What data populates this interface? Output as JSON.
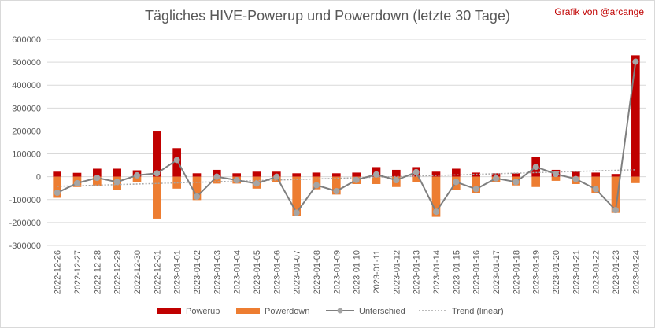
{
  "chart_data": {
    "type": "bar",
    "title": "Tägliches HIVE-Powerup und Powerdown (letzte 30 Tage)",
    "credit": "Grafik von @arcange",
    "categories": [
      "2022-12-26",
      "2022-12-27",
      "2022-12-28",
      "2022-12-29",
      "2022-12-30",
      "2022-12-31",
      "2023-01-01",
      "2023-01-02",
      "2023-01-03",
      "2023-01-04",
      "2023-01-05",
      "2023-01-06",
      "2023-01-07",
      "2023-01-08",
      "2023-01-09",
      "2023-01-10",
      "2023-01-11",
      "2023-01-12",
      "2023-01-13",
      "2023-01-14",
      "2023-01-15",
      "2023-01-16",
      "2023-01-17",
      "2023-01-18",
      "2023-01-19",
      "2023-01-20",
      "2023-01-21",
      "2023-01-22",
      "2023-01-23",
      "2023-01-24"
    ],
    "series": [
      {
        "name": "Powerup",
        "type": "bar",
        "color": "#c00000",
        "values": [
          22000,
          17000,
          35000,
          35000,
          28000,
          198000,
          125000,
          15000,
          30000,
          15000,
          22000,
          22000,
          15000,
          18000,
          15000,
          18000,
          42000,
          30000,
          42000,
          22000,
          35000,
          18000,
          15000,
          15000,
          88000,
          30000,
          22000,
          18000,
          12000,
          530000
        ]
      },
      {
        "name": "Powerdown",
        "type": "bar",
        "color": "#ed7d31",
        "values": [
          -92000,
          -45000,
          -40000,
          -58000,
          -22000,
          -183000,
          -52000,
          -102000,
          -30000,
          -30000,
          -52000,
          -22000,
          -172000,
          -55000,
          -78000,
          -32000,
          -32000,
          -45000,
          -22000,
          -175000,
          -58000,
          -72000,
          -22000,
          -38000,
          -45000,
          -18000,
          -32000,
          -72000,
          -158000,
          -28000
        ]
      },
      {
        "name": "Unterschied",
        "type": "line",
        "color": "#7f7f7f",
        "values": [
          -70000,
          -28000,
          -5000,
          -23000,
          6000,
          15000,
          73000,
          -87000,
          0,
          -15000,
          -30000,
          0,
          -157000,
          -37000,
          -63000,
          -14000,
          10000,
          -15000,
          20000,
          -153000,
          -23000,
          -54000,
          -7000,
          -23000,
          43000,
          12000,
          -10000,
          -54000,
          -146000,
          502000
        ]
      },
      {
        "name": "Trend (linear)",
        "type": "trend",
        "color": "#a6a6a6",
        "values": [
          -42000,
          -39500,
          -37000,
          -34500,
          -32000,
          -29500,
          -27000,
          -24500,
          -22000,
          -19500,
          -17000,
          -14500,
          -12000,
          -9500,
          -7000,
          -4500,
          -2000,
          500,
          3000,
          5500,
          8000,
          10500,
          13000,
          15500,
          18000,
          20500,
          23000,
          25500,
          28000,
          30500
        ]
      }
    ],
    "ylim": [
      -300000,
      600000
    ],
    "yticks": [
      -300000,
      -200000,
      -100000,
      0,
      100000,
      200000,
      300000,
      400000,
      500000,
      600000
    ],
    "grid": true,
    "legend": "bottom"
  }
}
